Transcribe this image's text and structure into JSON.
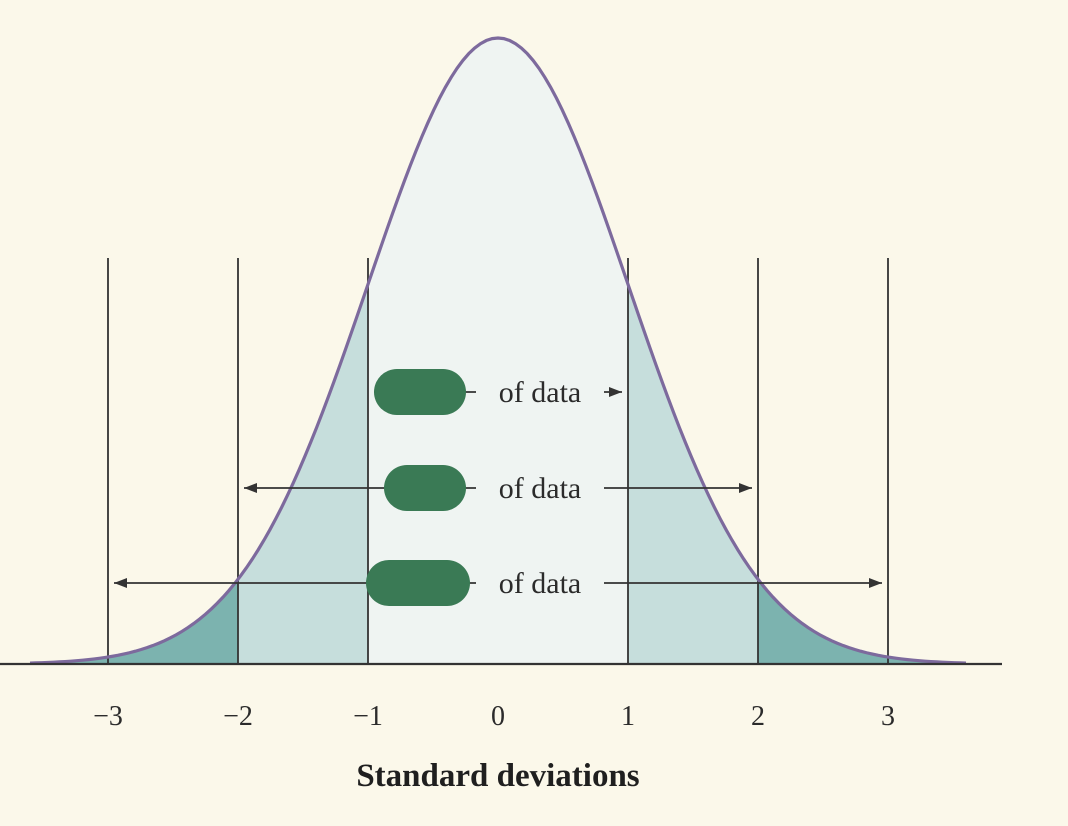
{
  "chart_data": {
    "type": "area",
    "distribution": "normal",
    "x": [
      -3,
      -2,
      -1,
      0,
      1,
      2,
      3
    ],
    "xlabel": "Standard deviations",
    "xlim": [
      -3.6,
      3.6
    ],
    "tick_labels": [
      "−3",
      "−2",
      "−1",
      "0",
      "1",
      "2",
      "3"
    ],
    "shaded_regions": [
      {
        "from": -1,
        "to": 1,
        "color": "#eff4f2"
      },
      {
        "from": -2,
        "to": -1,
        "color": "#c6dedc"
      },
      {
        "from": 1,
        "to": 2,
        "color": "#c6dedc"
      },
      {
        "from": -3.6,
        "to": -2,
        "color": "#7cb3af"
      },
      {
        "from": 2,
        "to": 3.6,
        "color": "#7cb3af"
      }
    ],
    "intervals": [
      {
        "from": -1,
        "to": 1,
        "label": "of data"
      },
      {
        "from": -2,
        "to": 2,
        "label": "of data"
      },
      {
        "from": -3,
        "to": 3,
        "label": "of data"
      }
    ],
    "grid": false,
    "curve_color": "#7d6a9d",
    "redaction_color": "#3a7a55",
    "background_color": "#fbf8ea"
  }
}
